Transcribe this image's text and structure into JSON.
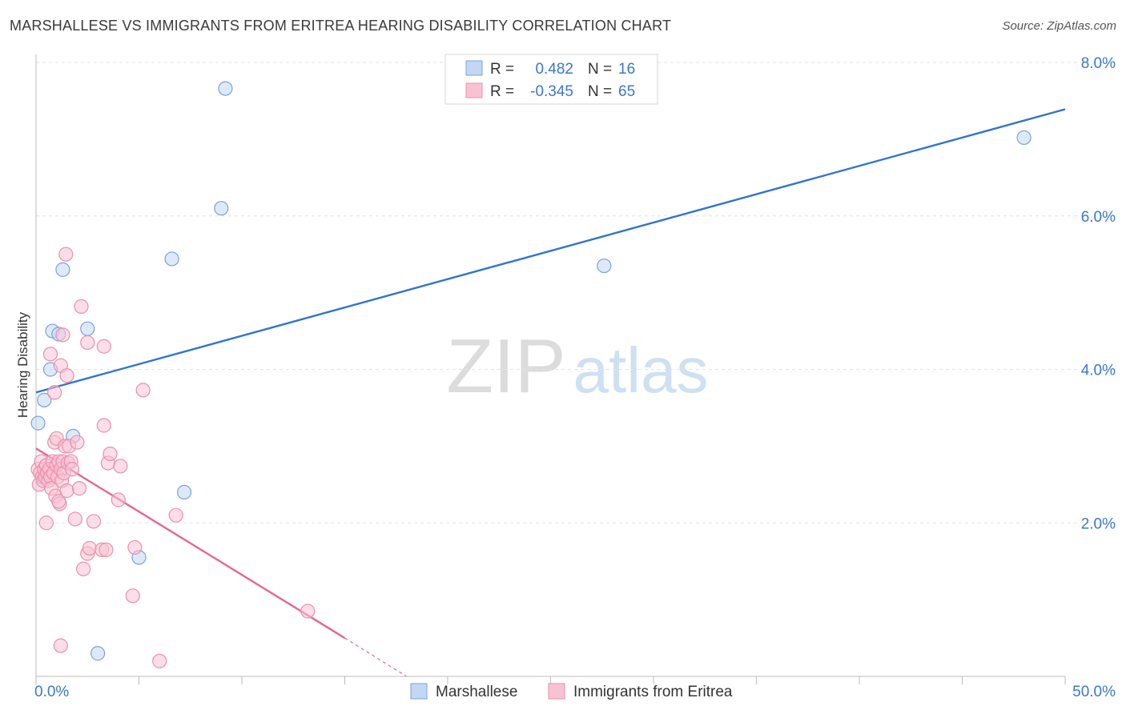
{
  "header": {
    "title": "MARSHALLESE VS IMMIGRANTS FROM ERITREA HEARING DISABILITY CORRELATION CHART",
    "source": "Source: ZipAtlas.com"
  },
  "watermark": {
    "zip": "ZIP",
    "atlas": "atlas"
  },
  "legend_top": {
    "rows": [
      {
        "r_label": "R =",
        "r_value": "0.482",
        "n_label": "N =",
        "n_value": "16"
      },
      {
        "r_label": "R =",
        "r_value": "-0.345",
        "n_label": "N =",
        "n_value": "65"
      }
    ]
  },
  "legend_bottom": {
    "items": [
      "Marshallese",
      "Immigrants from Eritrea"
    ]
  },
  "colors": {
    "blue_fill": "#c3d7f2",
    "blue_stroke": "#7aa3dd",
    "blue_line": "#2f74d0",
    "pink_fill": "#f7c3d3",
    "pink_stroke": "#ec8fae",
    "pink_line": "#e86592",
    "axis_text": "#3b78c8",
    "grid": "#e3e3e3"
  },
  "chart_data": {
    "type": "scatter",
    "title": "MARSHALLESE VS IMMIGRANTS FROM ERITREA HEARING DISABILITY CORRELATION CHART",
    "xlabel": "",
    "ylabel": "Hearing Disability",
    "xlim": [
      0,
      50
    ],
    "ylim": [
      0,
      8.0
    ],
    "x_tick_labels": [
      {
        "value": 0,
        "label": "0.0%"
      },
      {
        "value": 50,
        "label": "50.0%"
      }
    ],
    "y_tick_labels": [
      {
        "value": 2,
        "label": "2.0%"
      },
      {
        "value": 4,
        "label": "4.0%"
      },
      {
        "value": 6,
        "label": "6.0%"
      },
      {
        "value": 8,
        "label": "8.0%"
      }
    ],
    "grid": true,
    "legend_position": "top-center",
    "series": [
      {
        "name": "Marshallese",
        "color": "blue",
        "points": [
          [
            0.1,
            3.3
          ],
          [
            0.4,
            3.6
          ],
          [
            0.7,
            4.0
          ],
          [
            0.8,
            4.5
          ],
          [
            1.1,
            4.46
          ],
          [
            1.3,
            5.3
          ],
          [
            1.8,
            3.13
          ],
          [
            2.5,
            4.53
          ],
          [
            3.0,
            0.3
          ],
          [
            5.0,
            1.55
          ],
          [
            6.6,
            5.44
          ],
          [
            7.2,
            2.4
          ],
          [
            9.0,
            6.1
          ],
          [
            9.2,
            7.66
          ],
          [
            27.6,
            5.35
          ],
          [
            48.0,
            7.02
          ]
        ],
        "trend": {
          "x_start": 0,
          "y_start": 3.7,
          "x_end": 50,
          "y_end": 7.39
        }
      },
      {
        "name": "Immigrants from Eritrea",
        "color": "pink",
        "points": [
          [
            0.1,
            2.7
          ],
          [
            0.15,
            2.5
          ],
          [
            0.2,
            2.65
          ],
          [
            0.25,
            2.8
          ],
          [
            0.3,
            2.6
          ],
          [
            0.35,
            2.55
          ],
          [
            0.4,
            2.7
          ],
          [
            0.45,
            2.6
          ],
          [
            0.5,
            2.75
          ],
          [
            0.55,
            2.65
          ],
          [
            0.6,
            2.55
          ],
          [
            0.65,
            2.7
          ],
          [
            0.7,
            2.6
          ],
          [
            0.75,
            2.45
          ],
          [
            0.8,
            2.8
          ],
          [
            0.85,
            2.65
          ],
          [
            0.9,
            3.05
          ],
          [
            0.95,
            2.35
          ],
          [
            1.0,
            2.75
          ],
          [
            1.05,
            2.6
          ],
          [
            1.1,
            2.8
          ],
          [
            1.15,
            2.25
          ],
          [
            1.2,
            2.7
          ],
          [
            1.25,
            2.55
          ],
          [
            1.3,
            2.8
          ],
          [
            1.35,
            2.65
          ],
          [
            0.5,
            2.0
          ],
          [
            0.7,
            4.2
          ],
          [
            0.9,
            3.7
          ],
          [
            1.0,
            3.1
          ],
          [
            1.1,
            2.28
          ],
          [
            1.2,
            4.05
          ],
          [
            1.3,
            4.45
          ],
          [
            1.4,
            3.0
          ],
          [
            1.5,
            2.42
          ],
          [
            1.55,
            2.78
          ],
          [
            1.6,
            3.0
          ],
          [
            1.7,
            2.8
          ],
          [
            1.75,
            2.7
          ],
          [
            1.45,
            5.5
          ],
          [
            1.5,
            3.92
          ],
          [
            1.9,
            2.05
          ],
          [
            2.0,
            3.05
          ],
          [
            2.1,
            2.45
          ],
          [
            2.2,
            4.82
          ],
          [
            2.3,
            1.4
          ],
          [
            2.5,
            4.35
          ],
          [
            2.5,
            1.6
          ],
          [
            2.6,
            1.67
          ],
          [
            2.8,
            2.02
          ],
          [
            3.2,
            1.65
          ],
          [
            3.3,
            3.27
          ],
          [
            3.3,
            4.3
          ],
          [
            3.5,
            2.78
          ],
          [
            3.6,
            2.9
          ],
          [
            3.4,
            1.65
          ],
          [
            4.0,
            2.3
          ],
          [
            4.1,
            2.74
          ],
          [
            4.7,
            1.05
          ],
          [
            4.8,
            1.68
          ],
          [
            5.2,
            3.73
          ],
          [
            6.0,
            0.2
          ],
          [
            6.8,
            2.1
          ],
          [
            13.2,
            0.85
          ],
          [
            1.2,
            0.4
          ]
        ],
        "trend": {
          "x_start": 0,
          "y_start": 2.97,
          "x_end": 15,
          "y_end": 0.5
        },
        "trend_dashed": {
          "x_start": 15,
          "y_start": 0.5,
          "x_end": 18,
          "y_end": 0.0
        }
      }
    ]
  }
}
